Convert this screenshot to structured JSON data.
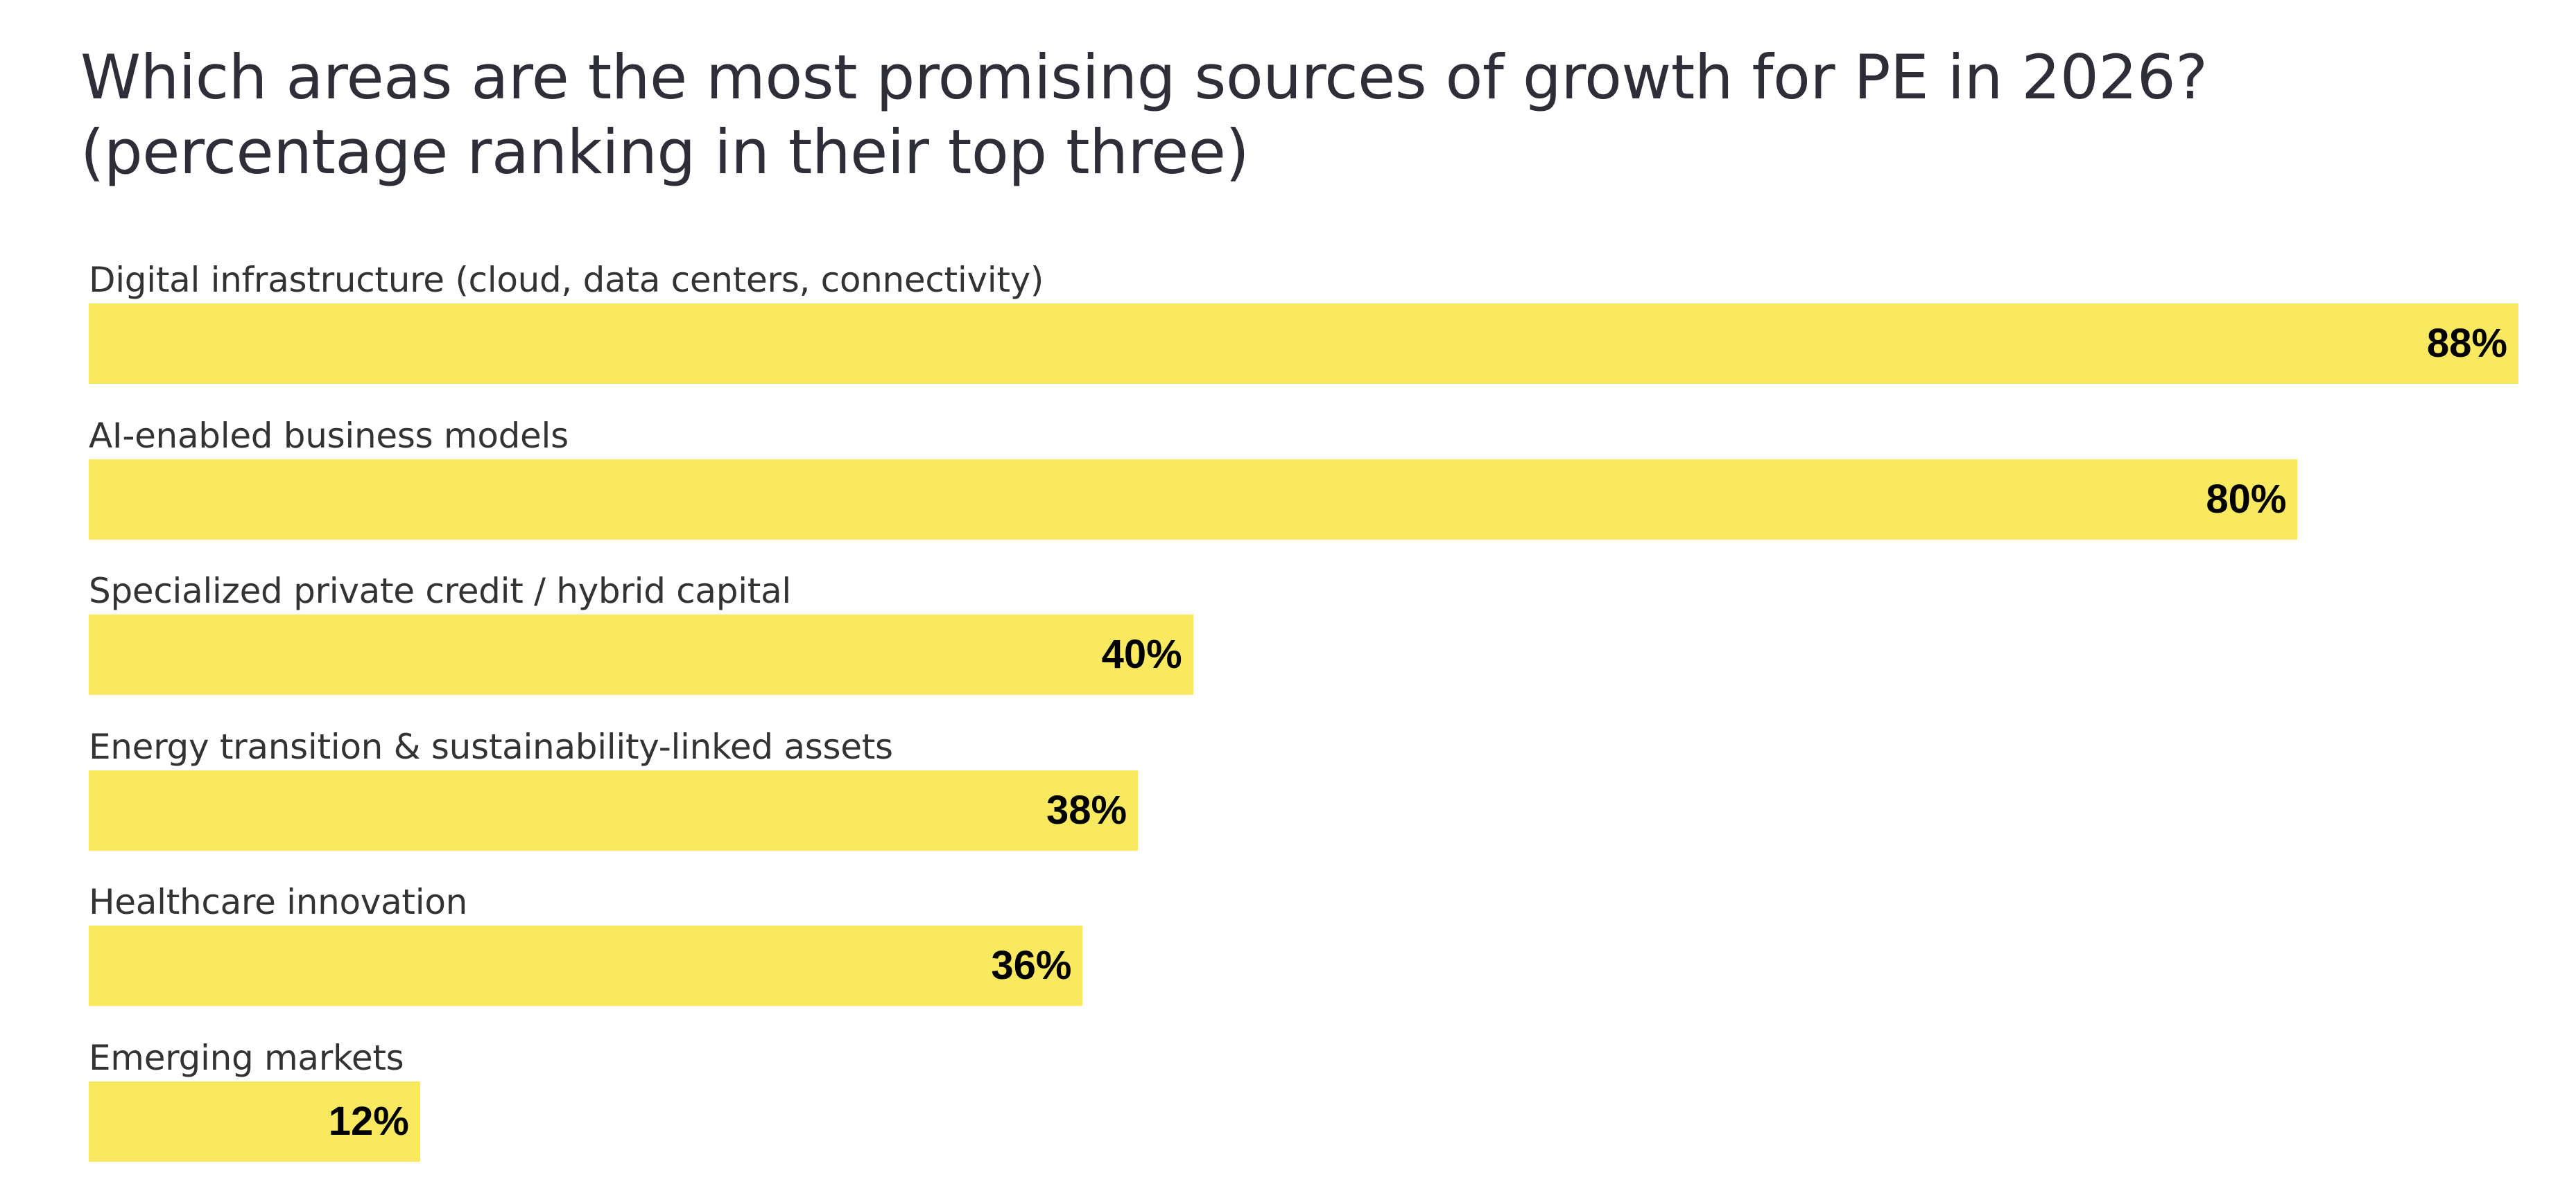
{
  "chart_data": {
    "type": "bar",
    "orientation": "horizontal",
    "title": "Which areas are the most promising sources of growth for PE in 2026? (percentage ranking in their top three)",
    "xlabel": "",
    "ylabel": "",
    "unit": "%",
    "grid": false,
    "legend": "none",
    "xlim": [
      0,
      100
    ],
    "bar_color": "#f9e960",
    "categories": [
      "Digital infrastructure (cloud, data centers, connectivity)",
      "AI-enabled business models",
      "Specialized private credit / hybrid capital",
      "Energy transition & sustainability-linked assets",
      "Healthcare innovation",
      "Emerging markets"
    ],
    "values": [
      88,
      80,
      40,
      38,
      36,
      12
    ],
    "value_labels": [
      "88%",
      "80%",
      "40%",
      "38%",
      "36%",
      "12%"
    ]
  }
}
